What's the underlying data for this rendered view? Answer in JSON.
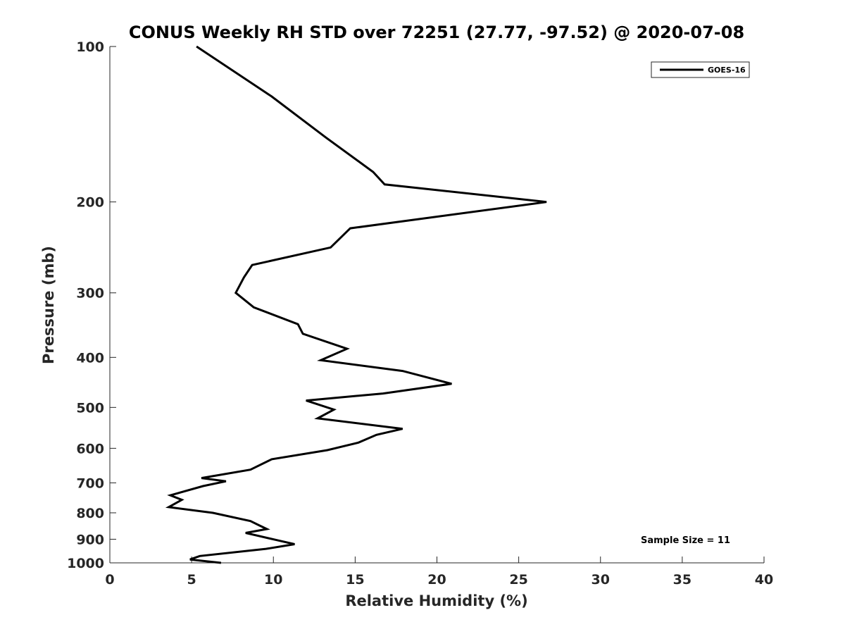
{
  "chart_data": {
    "type": "line",
    "title": "CONUS Weekly RH STD over 72251 (27.77, -97.52) @ 2020-07-08",
    "xlabel": "Relative Humidity (%)",
    "ylabel": "Pressure (mb)",
    "xlim": [
      0,
      40
    ],
    "ylim": [
      100,
      1000
    ],
    "yscale": "log",
    "yreversed": true,
    "grid": false,
    "xticks": [
      0,
      5,
      10,
      15,
      20,
      25,
      30,
      35,
      40
    ],
    "yticks": [
      100,
      200,
      300,
      400,
      500,
      600,
      700,
      800,
      900,
      1000
    ],
    "legend": {
      "position": "top-right",
      "entries": [
        "GOES-16"
      ]
    },
    "annotation": "Sample Size = 11",
    "colors": {
      "series": "#000000",
      "axis": "#262626"
    },
    "series": [
      {
        "name": "GOES-16",
        "x": [
          5.3,
          9.9,
          13.2,
          16.1,
          16.8,
          26.7,
          14.7,
          13.5,
          8.7,
          8.2,
          7.7,
          8.8,
          11.5,
          11.8,
          14.5,
          12.9,
          17.9,
          20.9,
          16.7,
          12.0,
          13.7,
          12.7,
          17.9,
          16.3,
          15.2,
          13.3,
          9.9,
          8.6,
          5.6,
          7.1,
          5.7,
          3.7,
          4.4,
          3.6,
          6.3,
          8.6,
          9.1,
          9.6,
          8.3,
          10.3,
          11.3,
          9.5,
          5.5,
          4.9,
          6.8
        ],
        "y": [
          100,
          125,
          150,
          175,
          185,
          200,
          225,
          245,
          265,
          280,
          300,
          320,
          345,
          360,
          385,
          405,
          425,
          450,
          470,
          485,
          505,
          525,
          550,
          565,
          585,
          605,
          630,
          660,
          685,
          695,
          710,
          740,
          755,
          780,
          800,
          830,
          845,
          860,
          875,
          905,
          920,
          940,
          970,
          985,
          1000
        ]
      }
    ]
  }
}
